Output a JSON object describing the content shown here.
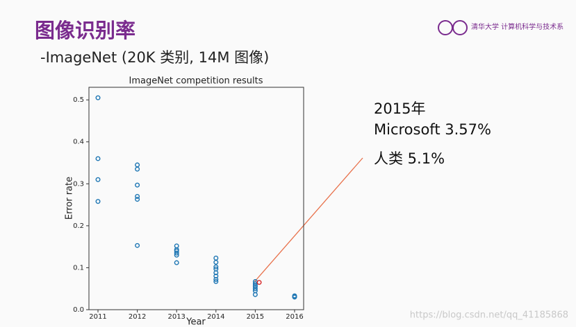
{
  "slide": {
    "title": "图像识别率",
    "subtitle": "-ImageNet (20K 类别, 14M 图像)",
    "logo": "清华大学 计算机科学与技术系",
    "annotation_lines": [
      "2015年",
      "Microsoft 3.57%",
      "人类 5.1%"
    ],
    "watermark": "https://blog.csdn.net/qq_41185868"
  },
  "chart_data": {
    "type": "scatter",
    "title": "ImageNet competition results",
    "x_label": "Year",
    "y_label": "Error rate",
    "series": [
      {
        "color": "#1f77b4",
        "x": [
          2011,
          2011,
          2011,
          2011,
          2012,
          2012,
          2012,
          2012,
          2012,
          2012,
          2013,
          2013,
          2013,
          2013,
          2013,
          2013,
          2014,
          2014,
          2014,
          2014,
          2014,
          2014,
          2014,
          2014,
          2015,
          2015,
          2015,
          2015,
          2015,
          2015,
          2015,
          2016,
          2016,
          2016
        ],
        "values": [
          0.505,
          0.36,
          0.31,
          0.258,
          0.345,
          0.335,
          0.297,
          0.27,
          0.263,
          0.153,
          0.152,
          0.143,
          0.14,
          0.135,
          0.13,
          0.112,
          0.123,
          0.113,
          0.102,
          0.097,
          0.088,
          0.08,
          0.072,
          0.067,
          0.067,
          0.062,
          0.058,
          0.055,
          0.05,
          0.045,
          0.036,
          0.033,
          0.031,
          0.03
        ]
      },
      {
        "color": "#d62728",
        "x": [
          2015.1
        ],
        "values": [
          0.065
        ]
      }
    ],
    "xlim": [
      2010.77,
      2016.23
    ],
    "ylim": [
      0,
      0.53
    ],
    "xticks": [
      2011,
      2012,
      2013,
      2014,
      2015,
      2016
    ],
    "yticks": [
      {
        "value": 0,
        "label": "0.0"
      },
      0.1,
      0.2,
      0.3,
      0.4,
      0.5
    ]
  }
}
